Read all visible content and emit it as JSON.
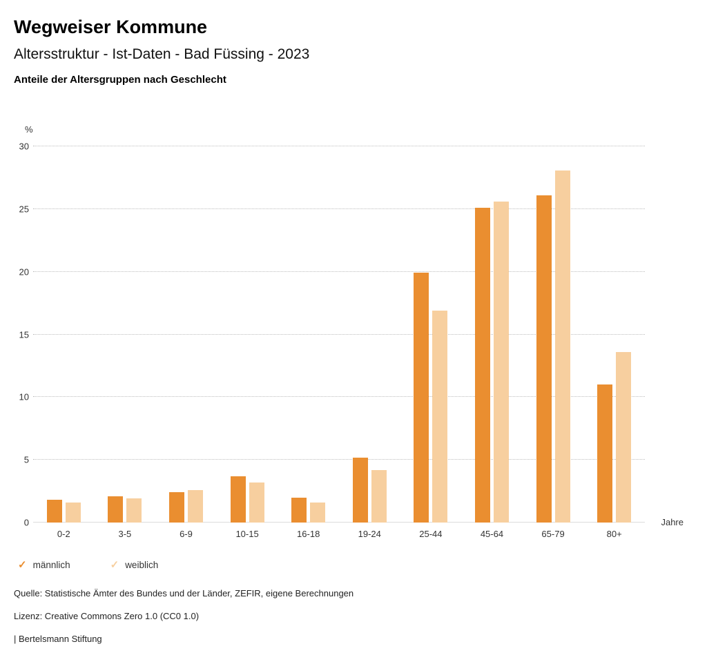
{
  "header": {
    "title": "Wegweiser Kommune",
    "subtitle": "Altersstruktur - Ist-Daten - Bad Füssing - 2023",
    "heading": "Anteile der Altersgruppen nach Geschlecht"
  },
  "chart_data": {
    "type": "bar",
    "categories": [
      "0-2",
      "3-5",
      "6-9",
      "10-15",
      "16-18",
      "19-24",
      "25-44",
      "45-64",
      "65-79",
      "80+"
    ],
    "series": [
      {
        "name": "männlich",
        "color": "#EA8E30",
        "values": [
          1.8,
          2.1,
          2.4,
          3.7,
          2.0,
          5.2,
          19.9,
          25.1,
          26.1,
          11.0
        ]
      },
      {
        "name": "weiblich",
        "color": "#F7CF9F",
        "values": [
          1.6,
          1.9,
          2.6,
          3.2,
          1.6,
          4.2,
          16.9,
          25.6,
          28.1,
          13.6
        ]
      }
    ],
    "title": "Anteile der Altersgruppen nach Geschlecht",
    "xlabel": "Jahre",
    "ylabel": "%",
    "ylim": [
      0,
      30
    ],
    "yticks": [
      0,
      5,
      10,
      15,
      20,
      25,
      30
    ],
    "grid": "horizontal-dotted",
    "legend_position": "bottom-left"
  },
  "legend": {
    "items": [
      {
        "label": "männlich",
        "color": "#EA8E30",
        "icon": "✓"
      },
      {
        "label": "weiblich",
        "color": "#F7CF9F",
        "icon": "✓"
      }
    ]
  },
  "footer": {
    "source": "Quelle: Statistische Ämter des Bundes und der Länder, ZEFIR, eigene Berechnungen",
    "license": "Lizenz: Creative Commons Zero 1.0 (CC0 1.0)",
    "attribution": "| Bertelsmann Stiftung"
  }
}
